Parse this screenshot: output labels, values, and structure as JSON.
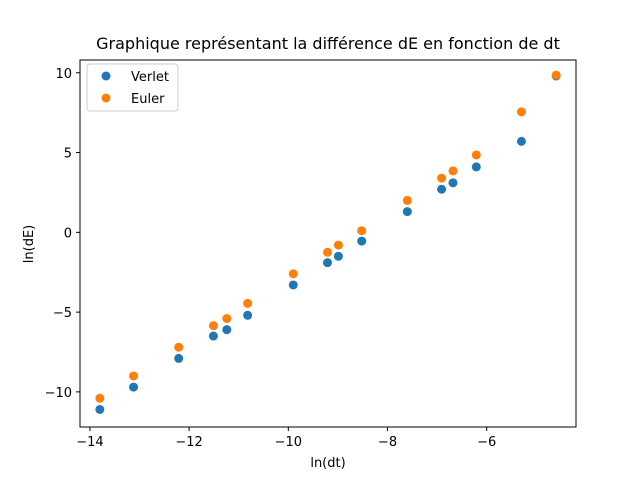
{
  "chart_data": {
    "type": "scatter",
    "title": "Graphique représentant la différence dE en fonction de dt",
    "xlabel": "ln(dt)",
    "ylabel": "ln(dE)",
    "xlim": [
      -14.2,
      -4.2
    ],
    "ylim": [
      -12.2,
      10.8
    ],
    "xticks": [
      -14,
      -12,
      -10,
      -8,
      -6
    ],
    "yticks": [
      -10,
      -5,
      0,
      5,
      10
    ],
    "xtick_labels": [
      "−14",
      "−12",
      "−10",
      "−8",
      "−6"
    ],
    "ytick_labels": [
      "−10",
      "−5",
      "0",
      "5",
      "10"
    ],
    "grid": false,
    "legend_position": "top-left",
    "series": [
      {
        "name": "Verlet",
        "color": "#1f77b4",
        "points": [
          [
            -13.8,
            -11.1
          ],
          [
            -13.12,
            -9.7
          ],
          [
            -12.21,
            -7.9
          ],
          [
            -11.51,
            -6.5
          ],
          [
            -11.24,
            -6.1
          ],
          [
            -10.82,
            -5.2
          ],
          [
            -9.9,
            -3.3
          ],
          [
            -9.21,
            -1.9
          ],
          [
            -8.99,
            -1.5
          ],
          [
            -8.52,
            -0.55
          ],
          [
            -7.6,
            1.3
          ],
          [
            -6.91,
            2.7
          ],
          [
            -6.68,
            3.1
          ],
          [
            -6.21,
            4.1
          ],
          [
            -5.3,
            5.7
          ],
          [
            -4.6,
            9.8
          ]
        ]
      },
      {
        "name": "Euler",
        "color": "#ff7f0e",
        "points": [
          [
            -13.8,
            -10.4
          ],
          [
            -13.12,
            -9.0
          ],
          [
            -12.21,
            -7.2
          ],
          [
            -11.51,
            -5.85
          ],
          [
            -11.24,
            -5.4
          ],
          [
            -10.82,
            -4.45
          ],
          [
            -9.9,
            -2.6
          ],
          [
            -9.21,
            -1.25
          ],
          [
            -8.99,
            -0.8
          ],
          [
            -8.52,
            0.1
          ],
          [
            -7.6,
            2.0
          ],
          [
            -6.91,
            3.4
          ],
          [
            -6.68,
            3.85
          ],
          [
            -6.21,
            4.85
          ],
          [
            -5.3,
            7.55
          ],
          [
            -4.6,
            9.85
          ]
        ]
      }
    ]
  }
}
